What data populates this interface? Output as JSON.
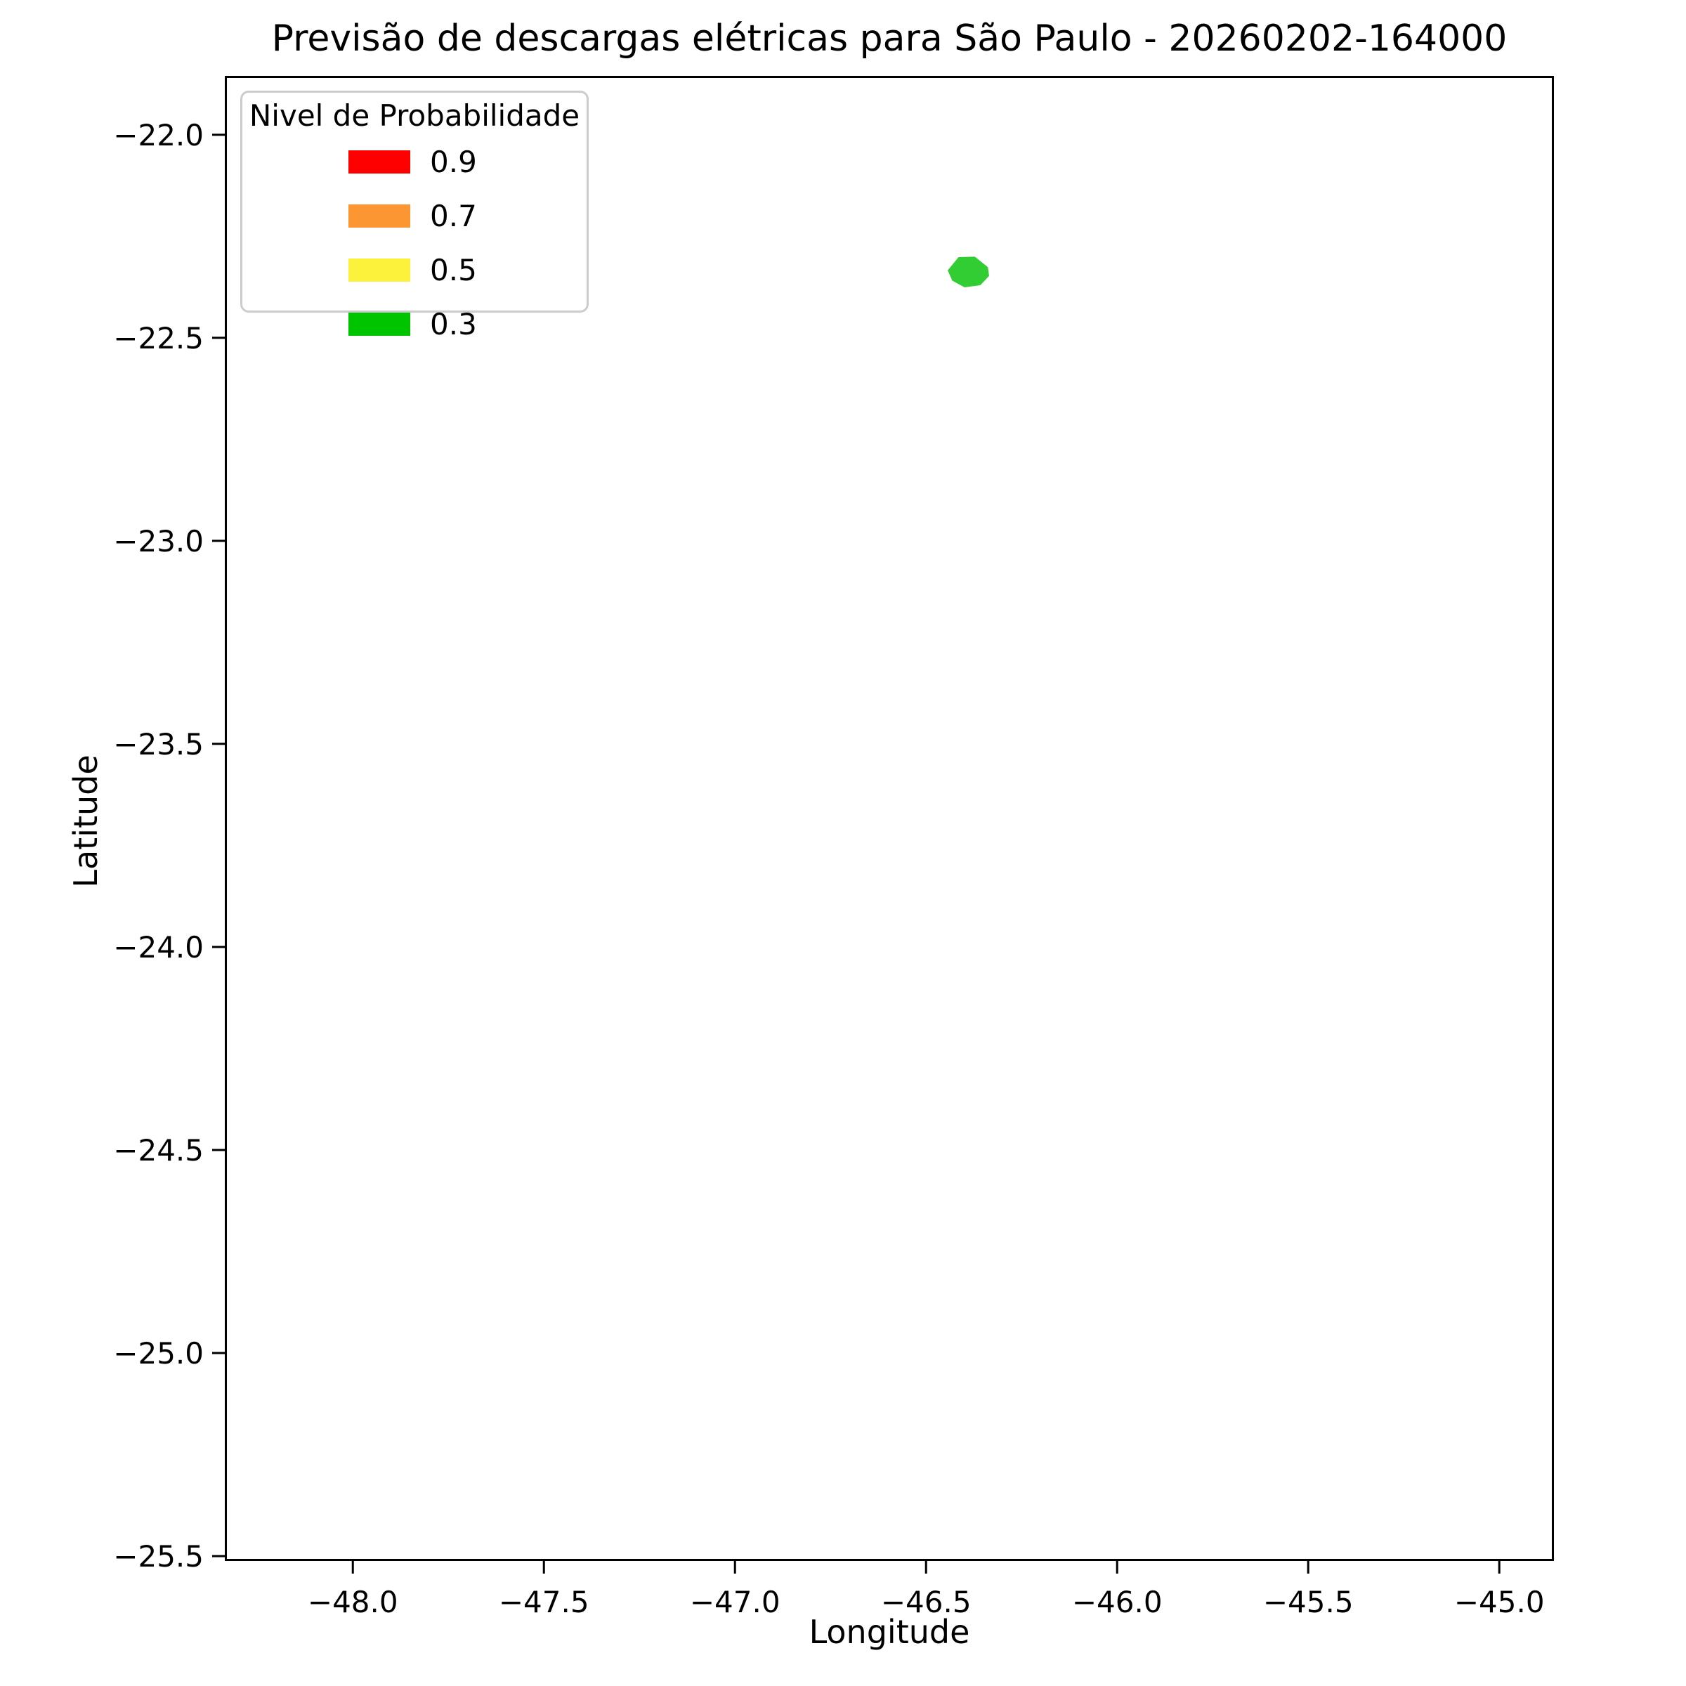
{
  "chart_data": {
    "type": "map-contour",
    "title": "Previsão de descargas elétricas para São Paulo - 20260202-164000",
    "xlabel": "Longitude",
    "ylabel": "Latitude",
    "xlim": [
      -48.335,
      -44.857
    ],
    "ylim": [
      -25.512,
      -21.855
    ],
    "grid": false,
    "background_color": "#ffffff",
    "x_ticks": [
      {
        "value": -48.0,
        "label": "−48.0"
      },
      {
        "value": -47.5,
        "label": "−47.5"
      },
      {
        "value": -47.0,
        "label": "−47.0"
      },
      {
        "value": -46.5,
        "label": "−46.5"
      },
      {
        "value": -46.0,
        "label": "−46.0"
      },
      {
        "value": -45.5,
        "label": "−45.5"
      },
      {
        "value": -45.0,
        "label": "−45.0"
      }
    ],
    "y_ticks": [
      {
        "value": -22.0,
        "label": "−22.0"
      },
      {
        "value": -22.5,
        "label": "−22.5"
      },
      {
        "value": -23.0,
        "label": "−23.0"
      },
      {
        "value": -23.5,
        "label": "−23.5"
      },
      {
        "value": -24.0,
        "label": "−24.0"
      },
      {
        "value": -24.5,
        "label": "−24.5"
      },
      {
        "value": -25.0,
        "label": "−25.0"
      },
      {
        "value": -25.5,
        "label": "−25.5"
      }
    ],
    "legend": {
      "title": "Nivel de Probabilidade",
      "position": "upper left",
      "entries": [
        {
          "label": "0.9",
          "color": "#ff0000"
        },
        {
          "label": "0.7",
          "color": "#fb9632"
        },
        {
          "label": "0.5",
          "color": "#fcf23c"
        },
        {
          "label": "0.3",
          "color": "#00c400"
        }
      ]
    },
    "regions": [
      {
        "name": "probability-contour",
        "probability_level": 0.3,
        "color": "#32cd32",
        "center_lonlat": [
          -46.39,
          -22.34
        ],
        "polygon_lonlat": [
          [
            -46.441,
            -22.334
          ],
          [
            -46.414,
            -22.303
          ],
          [
            -46.373,
            -22.302
          ],
          [
            -46.34,
            -22.327
          ],
          [
            -46.337,
            -22.347
          ],
          [
            -46.359,
            -22.369
          ],
          [
            -46.399,
            -22.374
          ],
          [
            -46.43,
            -22.358
          ]
        ]
      }
    ]
  }
}
